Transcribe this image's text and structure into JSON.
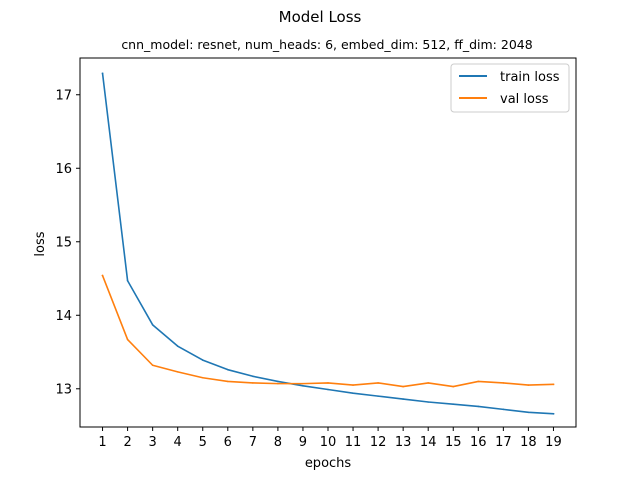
{
  "chart_data": {
    "type": "line",
    "title": "Model Loss",
    "subtitle": "cnn_model: resnet, num_heads: 6, embed_dim: 512, ff_dim: 2048",
    "xlabel": "epochs",
    "ylabel": "loss",
    "x": [
      1,
      2,
      3,
      4,
      5,
      6,
      7,
      8,
      9,
      10,
      11,
      12,
      13,
      14,
      15,
      16,
      17,
      18,
      19
    ],
    "xticks": [
      "1",
      "2",
      "3",
      "4",
      "5",
      "6",
      "7",
      "8",
      "9",
      "10",
      "11",
      "12",
      "13",
      "14",
      "15",
      "16",
      "17",
      "18",
      "19"
    ],
    "yticks": [
      13,
      14,
      15,
      16,
      17
    ],
    "xlim": [
      0.1,
      19.9
    ],
    "ylim": [
      12.48,
      17.5
    ],
    "grid": false,
    "legend_position": "top-right",
    "series": [
      {
        "name": "train loss",
        "color": "#1f77b4",
        "values": [
          17.29,
          14.47,
          13.87,
          13.58,
          13.39,
          13.26,
          13.17,
          13.1,
          13.04,
          12.99,
          12.94,
          12.9,
          12.86,
          12.82,
          12.79,
          12.76,
          12.72,
          12.68,
          12.66
        ]
      },
      {
        "name": "val loss",
        "color": "#ff7f0e",
        "values": [
          14.54,
          13.67,
          13.32,
          13.23,
          13.15,
          13.1,
          13.08,
          13.07,
          13.07,
          13.08,
          13.05,
          13.08,
          13.03,
          13.08,
          13.03,
          13.1,
          13.08,
          13.05,
          13.06
        ]
      }
    ]
  }
}
